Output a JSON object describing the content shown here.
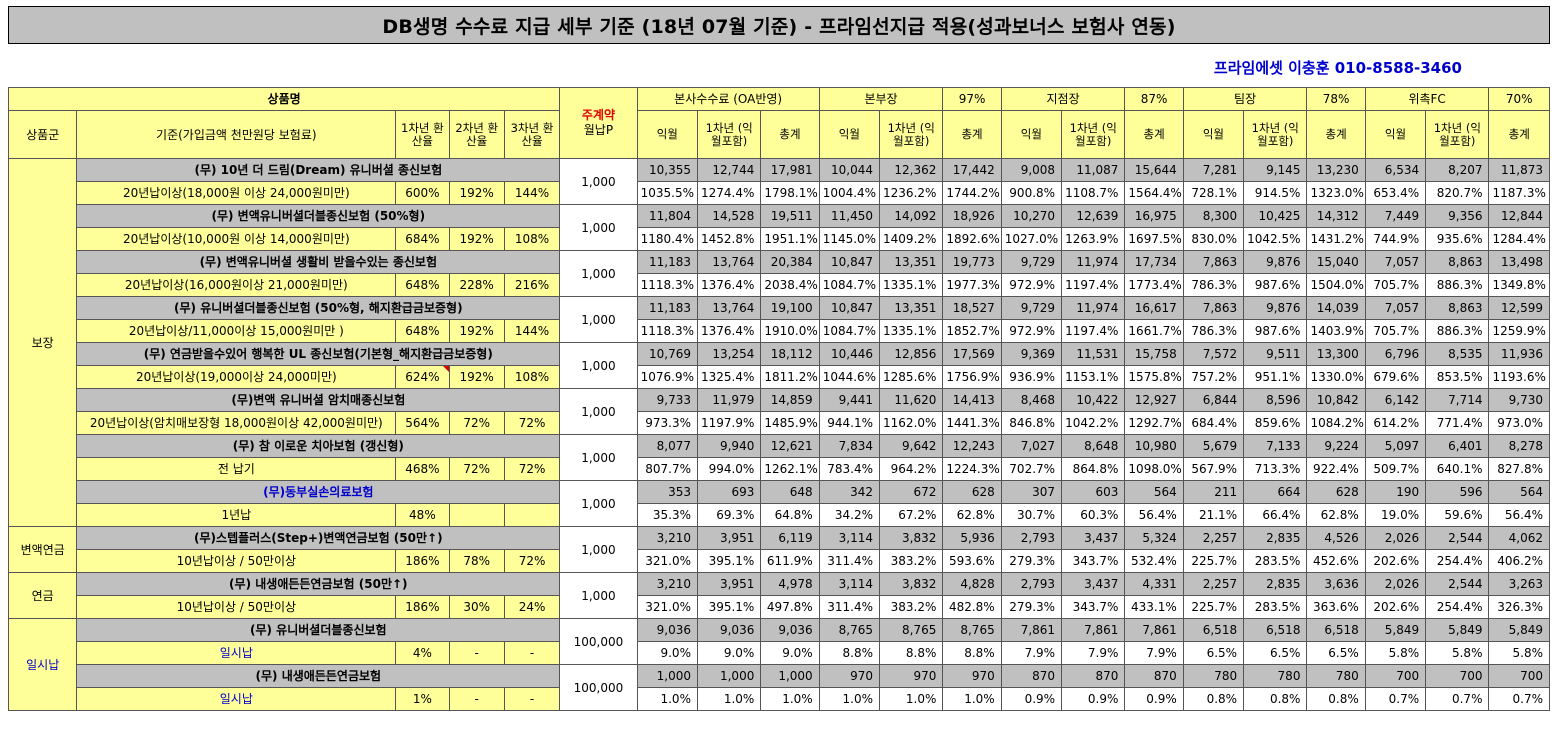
{
  "title": "DB생명 수수료 지급 세부 기준 (18년 07월 기준) - 프라임선지급 적용(성과보너스 보험사 연동)",
  "contact": "프라임에셋 이충훈 010-8588-3460",
  "header": {
    "product_name": "상품명",
    "product_group": "상품군",
    "basis": "기준(가입금액 천만원당 보험료)",
    "y1": "1차년 환산율",
    "y2": "2차년 환산율",
    "y3": "3차년 환산율",
    "main_contract": "주계약",
    "monthly_p": "월납P",
    "hq": "본사수수료 (OA반영)",
    "bonbujang": "본부장",
    "bonbujang_pct": "97%",
    "jijeomjang": "지점장",
    "jijeomjang_pct": "87%",
    "timjang": "팀장",
    "timjang_pct": "78%",
    "fc": "위촉FC",
    "fc_pct": "70%",
    "sub_ikwol": "익월",
    "sub_y1": "1차년 (익월포함)",
    "sub_total": "총계"
  },
  "groups": [
    {
      "name": "보장"
    },
    {
      "name": "변액연금"
    },
    {
      "name": "연금"
    },
    {
      "name": "일시납"
    }
  ],
  "rows": [
    {
      "product": "(무) 10년 더 드림(Dream) 유니버셜 종신보험",
      "basis": "20년납이상(18,000원 이상 24,000원미만)",
      "r1": "600%",
      "r2": "192%",
      "r3": "144%",
      "p": "1,000",
      "a": [
        "10,355",
        "12,744",
        "17,981",
        "10,044",
        "12,362",
        "17,442",
        "9,008",
        "11,087",
        "15,644",
        "7,281",
        "9,145",
        "13,230",
        "6,534",
        "8,207",
        "11,873"
      ],
      "b": [
        "1035.5%",
        "1274.4%",
        "1798.1%",
        "1004.4%",
        "1236.2%",
        "1744.2%",
        "900.8%",
        "1108.7%",
        "1564.4%",
        "728.1%",
        "914.5%",
        "1323.0%",
        "653.4%",
        "820.7%",
        "1187.3%"
      ]
    },
    {
      "product": "(무) 변액유니버셜더블종신보험 (50%형)",
      "basis": "20년납이상(10,000원 이상 14,000원미만)",
      "r1": "684%",
      "r2": "192%",
      "r3": "108%",
      "p": "1,000",
      "a": [
        "11,804",
        "14,528",
        "19,511",
        "11,450",
        "14,092",
        "18,926",
        "10,270",
        "12,639",
        "16,975",
        "8,300",
        "10,425",
        "14,312",
        "7,449",
        "9,356",
        "12,844"
      ],
      "b": [
        "1180.4%",
        "1452.8%",
        "1951.1%",
        "1145.0%",
        "1409.2%",
        "1892.6%",
        "1027.0%",
        "1263.9%",
        "1697.5%",
        "830.0%",
        "1042.5%",
        "1431.2%",
        "744.9%",
        "935.6%",
        "1284.4%"
      ]
    },
    {
      "product": "(무) 변액유니버셜 생활비 받을수있는 종신보험",
      "basis": "20년납이상(16,000원이상 21,000원미만)",
      "r1": "648%",
      "r2": "228%",
      "r3": "216%",
      "p": "1,000",
      "a": [
        "11,183",
        "13,764",
        "20,384",
        "10,847",
        "13,351",
        "19,773",
        "9,729",
        "11,974",
        "17,734",
        "7,863",
        "9,876",
        "15,040",
        "7,057",
        "8,863",
        "13,498"
      ],
      "b": [
        "1118.3%",
        "1376.4%",
        "2038.4%",
        "1084.7%",
        "1335.1%",
        "1977.3%",
        "972.9%",
        "1197.4%",
        "1773.4%",
        "786.3%",
        "987.6%",
        "1504.0%",
        "705.7%",
        "886.3%",
        "1349.8%"
      ]
    },
    {
      "product": "(무) 유니버셜더블종신보험 (50%형, 해지환급금보증형)",
      "basis": "20년납이상/11,000이상 15,000원미만 )",
      "r1": "648%",
      "r2": "192%",
      "r3": "144%",
      "p": "1,000",
      "a": [
        "11,183",
        "13,764",
        "19,100",
        "10,847",
        "13,351",
        "18,527",
        "9,729",
        "11,974",
        "16,617",
        "7,863",
        "9,876",
        "14,039",
        "7,057",
        "8,863",
        "12,599"
      ],
      "b": [
        "1118.3%",
        "1376.4%",
        "1910.0%",
        "1084.7%",
        "1335.1%",
        "1852.7%",
        "972.9%",
        "1197.4%",
        "1661.7%",
        "786.3%",
        "987.6%",
        "1403.9%",
        "705.7%",
        "886.3%",
        "1259.9%"
      ]
    },
    {
      "product": "(무) 연금받을수있어 행복한 UL 종신보험(기본형_해지환급금보증형)",
      "basis": "20년납이상(19,000이상 24,000미만)",
      "r1": "624%",
      "r2": "192%",
      "r3": "108%",
      "p": "1,000",
      "a": [
        "10,769",
        "13,254",
        "18,112",
        "10,446",
        "12,856",
        "17,569",
        "9,369",
        "11,531",
        "15,758",
        "7,572",
        "9,511",
        "13,300",
        "6,796",
        "8,535",
        "11,936"
      ],
      "b": [
        "1076.9%",
        "1325.4%",
        "1811.2%",
        "1044.6%",
        "1285.6%",
        "1756.9%",
        "936.9%",
        "1153.1%",
        "1575.8%",
        "757.2%",
        "951.1%",
        "1330.0%",
        "679.6%",
        "853.5%",
        "1193.6%"
      ]
    },
    {
      "product": "(무)변액 유니버셜 암치매종신보험",
      "basis": "20년납이상(암치매보장형 18,000원이상 42,000원미만)",
      "r1": "564%",
      "r2": "72%",
      "r3": "72%",
      "p": "1,000",
      "a": [
        "9,733",
        "11,979",
        "14,859",
        "9,441",
        "11,620",
        "14,413",
        "8,468",
        "10,422",
        "12,927",
        "6,844",
        "8,596",
        "10,842",
        "6,142",
        "7,714",
        "9,730"
      ],
      "b": [
        "973.3%",
        "1197.9%",
        "1485.9%",
        "944.1%",
        "1162.0%",
        "1441.3%",
        "846.8%",
        "1042.2%",
        "1292.7%",
        "684.4%",
        "859.6%",
        "1084.2%",
        "614.2%",
        "771.4%",
        "973.0%"
      ]
    },
    {
      "product": "(무) 참 이로운 치아보험 (갱신형)",
      "basis": "전 납기",
      "r1": "468%",
      "r2": "72%",
      "r3": "72%",
      "p": "1,000",
      "a": [
        "8,077",
        "9,940",
        "12,621",
        "7,834",
        "9,642",
        "12,243",
        "7,027",
        "8,648",
        "10,980",
        "5,679",
        "7,133",
        "9,224",
        "5,097",
        "6,401",
        "8,278"
      ],
      "b": [
        "807.7%",
        "994.0%",
        "1262.1%",
        "783.4%",
        "964.2%",
        "1224.3%",
        "702.7%",
        "864.8%",
        "1098.0%",
        "567.9%",
        "713.3%",
        "922.4%",
        "509.7%",
        "640.1%",
        "827.8%"
      ]
    },
    {
      "product": "(무)동부실손의료보험",
      "basis": "1년납",
      "r1": "48%",
      "r2": "",
      "r3": "",
      "p": "1,000",
      "a": [
        "353",
        "693",
        "648",
        "342",
        "672",
        "628",
        "307",
        "603",
        "564",
        "211",
        "664",
        "628",
        "190",
        "596",
        "564"
      ],
      "b": [
        "35.3%",
        "69.3%",
        "64.8%",
        "34.2%",
        "67.2%",
        "62.8%",
        "30.7%",
        "60.3%",
        "56.4%",
        "21.1%",
        "66.4%",
        "62.8%",
        "19.0%",
        "59.6%",
        "56.4%"
      ]
    },
    {
      "product": "(무)스텝플러스(Step+)변액연금보험 (50만↑)",
      "basis": "10년납이상 / 50만이상",
      "r1": "186%",
      "r2": "78%",
      "r3": "72%",
      "p": "1,000",
      "a": [
        "3,210",
        "3,951",
        "6,119",
        "3,114",
        "3,832",
        "5,936",
        "2,793",
        "3,437",
        "5,324",
        "2,257",
        "2,835",
        "4,526",
        "2,026",
        "2,544",
        "4,062"
      ],
      "b": [
        "321.0%",
        "395.1%",
        "611.9%",
        "311.4%",
        "383.2%",
        "593.6%",
        "279.3%",
        "343.7%",
        "532.4%",
        "225.7%",
        "283.5%",
        "452.6%",
        "202.6%",
        "254.4%",
        "406.2%"
      ]
    },
    {
      "product": "(무) 내생애든든연금보험 (50만↑)",
      "basis": "10년납이상 / 50만이상",
      "r1": "186%",
      "r2": "30%",
      "r3": "24%",
      "p": "1,000",
      "a": [
        "3,210",
        "3,951",
        "4,978",
        "3,114",
        "3,832",
        "4,828",
        "2,793",
        "3,437",
        "4,331",
        "2,257",
        "2,835",
        "3,636",
        "2,026",
        "2,544",
        "3,263"
      ],
      "b": [
        "321.0%",
        "395.1%",
        "497.8%",
        "311.4%",
        "383.2%",
        "482.8%",
        "279.3%",
        "343.7%",
        "433.1%",
        "225.7%",
        "283.5%",
        "363.6%",
        "202.6%",
        "254.4%",
        "326.3%"
      ]
    },
    {
      "product": "(무) 유니버셜더블종신보험",
      "basis": "일시납",
      "r1": "4%",
      "r2": "-",
      "r3": "-",
      "p": "100,000",
      "a": [
        "9,036",
        "9,036",
        "9,036",
        "8,765",
        "8,765",
        "8,765",
        "7,861",
        "7,861",
        "7,861",
        "6,518",
        "6,518",
        "6,518",
        "5,849",
        "5,849",
        "5,849"
      ],
      "b": [
        "9.0%",
        "9.0%",
        "9.0%",
        "8.8%",
        "8.8%",
        "8.8%",
        "7.9%",
        "7.9%",
        "7.9%",
        "6.5%",
        "6.5%",
        "6.5%",
        "5.8%",
        "5.8%",
        "5.8%"
      ]
    },
    {
      "product": "(무) 내생애든든연금보험",
      "basis": "일시납",
      "r1": "1%",
      "r2": "-",
      "r3": "-",
      "p": "100,000",
      "a": [
        "1,000",
        "1,000",
        "1,000",
        "970",
        "970",
        "970",
        "870",
        "870",
        "870",
        "780",
        "780",
        "780",
        "700",
        "700",
        "700"
      ],
      "b": [
        "1.0%",
        "1.0%",
        "1.0%",
        "1.0%",
        "1.0%",
        "1.0%",
        "0.9%",
        "0.9%",
        "0.9%",
        "0.8%",
        "0.8%",
        "0.8%",
        "0.7%",
        "0.7%",
        "0.7%"
      ]
    }
  ]
}
